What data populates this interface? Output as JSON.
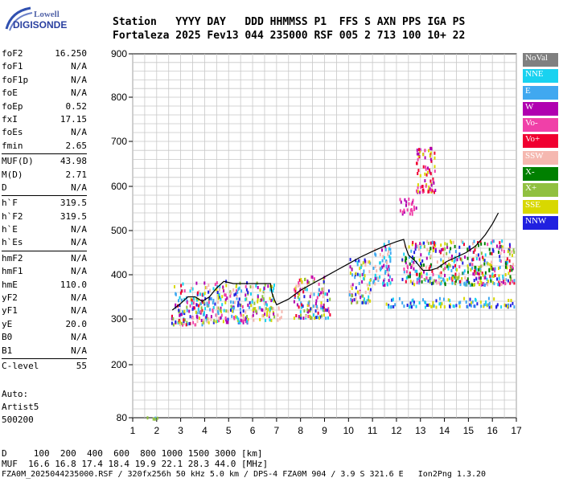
{
  "logo": {
    "line1": "Lowell",
    "line2": "DIGISONDE"
  },
  "header": {
    "row1": "Station   YYYY DAY   DDD HHMMSS P1  FFS S AXN PPS IGA PS",
    "row2": "Fortaleza 2025 Fev13 044 235000 RSF 005 2 713 100 10+ 22"
  },
  "params": [
    {
      "group": [
        {
          "name": "foF2",
          "value": "16.250"
        },
        {
          "name": "foF1",
          "value": "N/A"
        },
        {
          "name": "foF1p",
          "value": "N/A"
        },
        {
          "name": "foE",
          "value": "N/A"
        },
        {
          "name": "foEp",
          "value": "0.52"
        },
        {
          "name": "fxI",
          "value": "17.15"
        },
        {
          "name": "foEs",
          "value": "N/A"
        },
        {
          "name": "fmin",
          "value": "2.65"
        }
      ]
    },
    {
      "group": [
        {
          "name": "MUF(D)",
          "value": "43.98"
        },
        {
          "name": "M(D)",
          "value": "2.71"
        },
        {
          "name": "D",
          "value": "N/A"
        }
      ]
    },
    {
      "group": [
        {
          "name": "h`F",
          "value": "319.5"
        },
        {
          "name": "h`F2",
          "value": "319.5"
        },
        {
          "name": "h`E",
          "value": "N/A"
        },
        {
          "name": "h`Es",
          "value": "N/A"
        }
      ]
    },
    {
      "group": [
        {
          "name": "hmF2",
          "value": "N/A"
        },
        {
          "name": "hmF1",
          "value": "N/A"
        },
        {
          "name": "hmE",
          "value": "110.0"
        },
        {
          "name": "yF2",
          "value": "N/A"
        },
        {
          "name": "yF1",
          "value": "N/A"
        },
        {
          "name": "yE",
          "value": "20.0"
        },
        {
          "name": "B0",
          "value": "N/A"
        },
        {
          "name": "B1",
          "value": "N/A"
        }
      ]
    },
    {
      "group": [
        {
          "name": "C-level",
          "value": "55"
        }
      ]
    }
  ],
  "auto": {
    "line1": "Auto:",
    "line2": "Artist5",
    "line3": "500200"
  },
  "legend": [
    {
      "label": "NoVal",
      "color": "#808080"
    },
    {
      "label": "NNE",
      "color": "#19d2f0"
    },
    {
      "label": "E",
      "color": "#40a8f0"
    },
    {
      "label": "W",
      "color": "#b000b0"
    },
    {
      "label": "Vo-",
      "color": "#f040a8"
    },
    {
      "label": "Vo+",
      "color": "#f00030"
    },
    {
      "label": "SSW",
      "color": "#f5b8b0"
    },
    {
      "label": "X-",
      "color": "#008000"
    },
    {
      "label": "X+",
      "color": "#90c040"
    },
    {
      "label": "SSE",
      "color": "#d8d800"
    },
    {
      "label": "NNW",
      "color": "#2020e0"
    }
  ],
  "footer": {
    "row1": "D     100  200  400  600  800 1000 1500 3000 [km]",
    "row2": "MUF  16.6 16.8 17.4 18.4 19.9 22.1 28.3 44.0 [MHz]",
    "row3": "FZA0M_2025044235000.RSF / 320fx256h 50 kHz 5.0 km / DPS-4 FZA0M 904 / 3.9 S 321.6 E   Ion2Png 1.3.20"
  },
  "chart_data": {
    "type": "scatter",
    "xlim": [
      1,
      17
    ],
    "ylim": [
      80,
      900
    ],
    "x_ticks": [
      "1",
      "2",
      "3",
      "4",
      "5",
      "6",
      "7",
      "8",
      "9",
      "10",
      "11",
      "12",
      "13",
      "14",
      "15",
      "16",
      "17"
    ],
    "y_ticks": [
      "80",
      "200",
      "300",
      "400",
      "500",
      "600",
      "700",
      "800",
      "900"
    ],
    "grid": true,
    "trace_line": [
      [
        2.65,
        320
      ],
      [
        3.0,
        335
      ],
      [
        3.3,
        350
      ],
      [
        3.6,
        350
      ],
      [
        3.9,
        340
      ],
      [
        4.2,
        350
      ],
      [
        4.5,
        370
      ],
      [
        4.8,
        385
      ],
      [
        5.2,
        380
      ],
      [
        5.6,
        380
      ],
      [
        6.0,
        380
      ],
      [
        6.4,
        380
      ],
      [
        6.75,
        380
      ],
      [
        6.8,
        360
      ],
      [
        6.9,
        345
      ],
      [
        7.0,
        332
      ],
      [
        7.5,
        345
      ],
      [
        8.0,
        365
      ],
      [
        8.5,
        380
      ],
      [
        9.0,
        395
      ],
      [
        9.5,
        410
      ],
      [
        10.0,
        425
      ],
      [
        10.5,
        440
      ],
      [
        11.0,
        453
      ],
      [
        11.5,
        465
      ],
      [
        12.0,
        475
      ],
      [
        12.3,
        480
      ],
      [
        12.4,
        460
      ],
      [
        12.5,
        445
      ],
      [
        12.8,
        430
      ],
      [
        13.1,
        410
      ],
      [
        13.4,
        410
      ],
      [
        13.7,
        415
      ],
      [
        14.1,
        430
      ],
      [
        14.5,
        440
      ],
      [
        14.9,
        450
      ],
      [
        15.3,
        465
      ],
      [
        15.7,
        490
      ],
      [
        16.0,
        515
      ],
      [
        16.25,
        540
      ]
    ],
    "clusters": [
      {
        "x": [
          1.5,
          2.0
        ],
        "y": [
          80,
          84
        ],
        "colors": [
          "NNW",
          "E",
          "X+",
          "NNE"
        ]
      },
      {
        "x": [
          2.6,
          3.9
        ],
        "y": [
          290,
          385
        ],
        "colors": [
          "SSE",
          "SSW",
          "NNE",
          "E",
          "W",
          "Vo-",
          "Vo+",
          "X+",
          "NNW"
        ]
      },
      {
        "x": [
          3.9,
          5.9
        ],
        "y": [
          295,
          390
        ],
        "colors": [
          "SSE",
          "SSW",
          "NNE",
          "E",
          "W",
          "Vo-",
          "X+",
          "NNW"
        ]
      },
      {
        "x": [
          5.9,
          6.9
        ],
        "y": [
          300,
          385
        ],
        "colors": [
          "SSE",
          "SSW",
          "NNE",
          "X+",
          "W"
        ]
      },
      {
        "x": [
          7.0,
          7.2
        ],
        "y": [
          300,
          330
        ],
        "colors": [
          "SSW"
        ]
      },
      {
        "x": [
          7.7,
          9.2
        ],
        "y": [
          305,
          400
        ],
        "colors": [
          "SSW",
          "SSE",
          "W",
          "Vo-",
          "NNE",
          "E",
          "X+",
          "Vo+",
          "NNW"
        ]
      },
      {
        "x": [
          10.0,
          10.9
        ],
        "y": [
          340,
          440
        ],
        "colors": [
          "SSW",
          "SSE",
          "W",
          "E",
          "NNE",
          "NNW",
          "X+"
        ]
      },
      {
        "x": [
          11.0,
          11.8
        ],
        "y": [
          380,
          480
        ],
        "colors": [
          "NNE",
          "E",
          "W",
          "SSW"
        ]
      },
      {
        "x": [
          12.1,
          12.8
        ],
        "y": [
          540,
          575
        ],
        "colors": [
          "W",
          "Vo-"
        ]
      },
      {
        "x": [
          12.8,
          13.6
        ],
        "y": [
          590,
          690
        ],
        "colors": [
          "W",
          "Vo-",
          "SSE",
          "Vo+"
        ]
      },
      {
        "x": [
          12.2,
          16.9
        ],
        "y": [
          380,
          480
        ],
        "colors": [
          "SSE",
          "NNE",
          "E",
          "W",
          "Vo-",
          "Vo+",
          "NNW",
          "X+",
          "SSW",
          "X-"
        ]
      },
      {
        "x": [
          11.5,
          16.9
        ],
        "y": [
          330,
          350
        ],
        "colors": [
          "E",
          "NNE",
          "NNW",
          "SSE"
        ]
      }
    ]
  }
}
